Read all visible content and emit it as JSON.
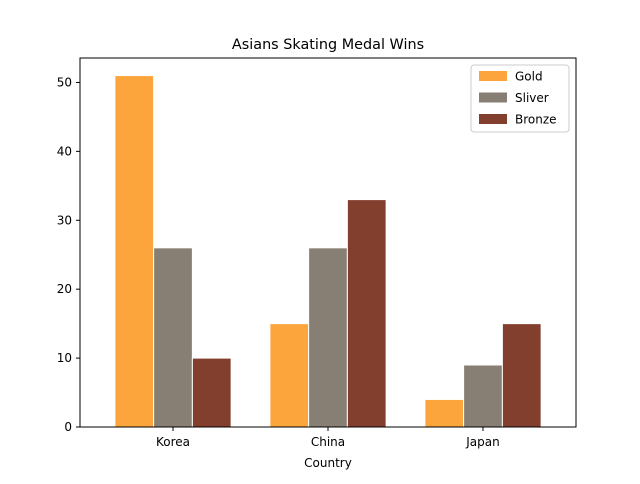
{
  "chart_data": {
    "type": "bar",
    "title": "Asians Skating Medal Wins",
    "xlabel": "Country",
    "ylabel": "",
    "categories": [
      "Korea",
      "China",
      "Japan"
    ],
    "series": [
      {
        "name": "Gold",
        "values": [
          51,
          15,
          4
        ],
        "color": "#fca53c"
      },
      {
        "name": "Sliver",
        "values": [
          26,
          26,
          9
        ],
        "color": "#877f73"
      },
      {
        "name": "Bronze",
        "values": [
          10,
          33,
          15
        ],
        "color": "#823f2e"
      }
    ],
    "ylim": [
      0,
      53.55
    ],
    "yticks": [
      0,
      10,
      20,
      30,
      40,
      50
    ],
    "grid": false,
    "legend_position": "top-right"
  }
}
